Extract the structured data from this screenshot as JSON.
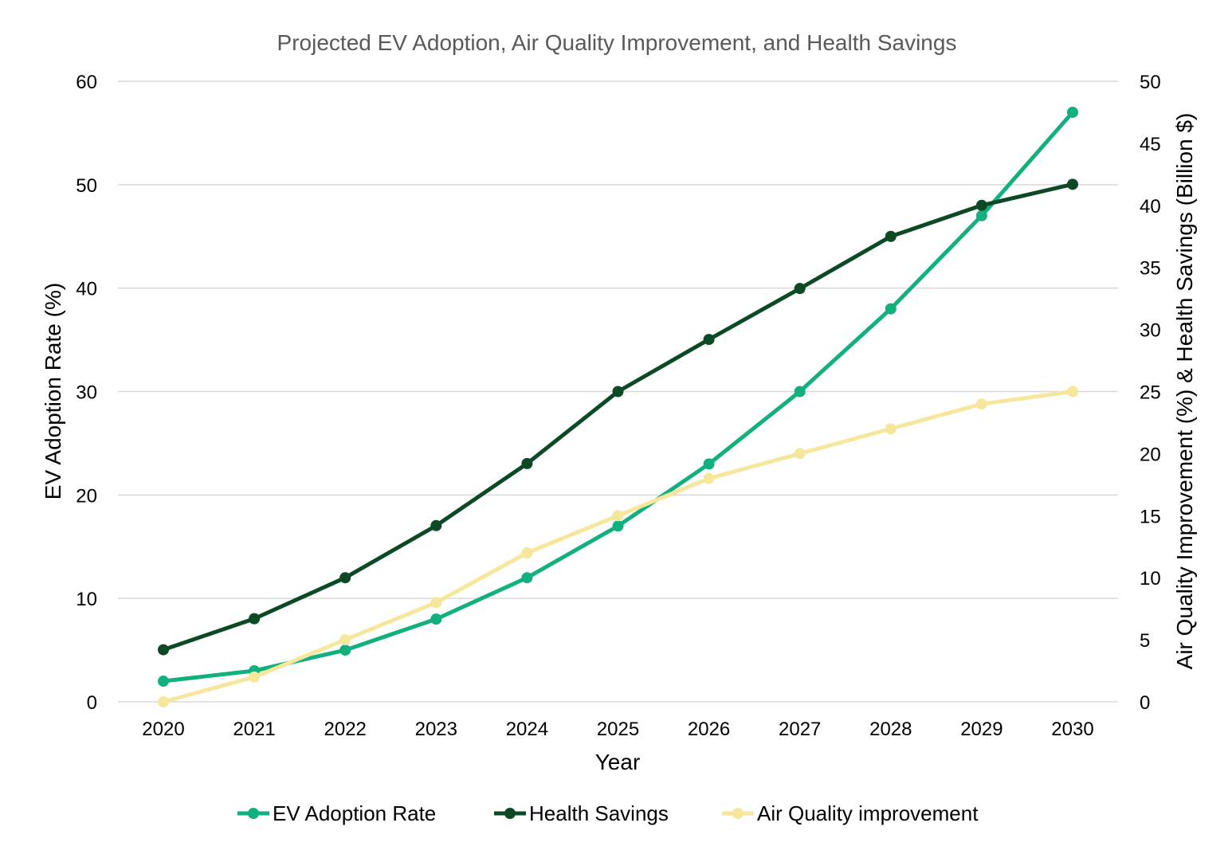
{
  "chart_data": {
    "type": "line",
    "title": "Projected EV Adoption, Air Quality Improvement, and Health Savings",
    "xlabel": "Year",
    "ylabel_left": "EV Adoption Rate (%)",
    "ylabel_right": "Air Quality Improvement (%) & Health Savings (Billion $)",
    "x": [
      "2020",
      "2021",
      "2022",
      "2023",
      "2024",
      "2025",
      "2026",
      "2027",
      "2028",
      "2029",
      "2030"
    ],
    "y_left_range": [
      0,
      60
    ],
    "y_left_ticks": [
      "0",
      "10",
      "20",
      "30",
      "40",
      "50",
      "60"
    ],
    "y_right_range": [
      0,
      50
    ],
    "y_right_ticks": [
      "0",
      "5",
      "10",
      "15",
      "20",
      "25",
      "30",
      "35",
      "40",
      "45",
      "50"
    ],
    "grid": true,
    "legend_position": "bottom",
    "series": [
      {
        "name": "EV Adoption Rate",
        "axis": "left",
        "color": "#12b07f",
        "values": [
          2,
          3,
          5,
          8,
          12,
          17,
          23,
          30,
          38,
          47,
          57
        ]
      },
      {
        "name": "Health Savings",
        "axis": "right",
        "color": "#0b4a25",
        "values": [
          4.2,
          6.7,
          10,
          14.2,
          19.2,
          25,
          29.2,
          33.3,
          37.5,
          40,
          41.7
        ]
      },
      {
        "name": "Air Quality improvement",
        "axis": "right",
        "color": "#f7e79c",
        "values": [
          0,
          2,
          5,
          8,
          12,
          15,
          18,
          20,
          22,
          24,
          25
        ]
      }
    ]
  }
}
